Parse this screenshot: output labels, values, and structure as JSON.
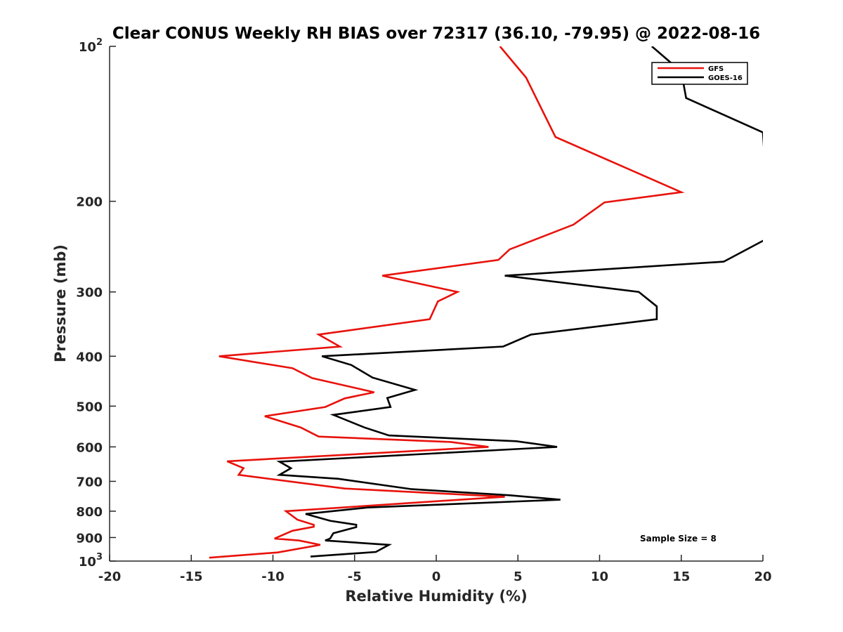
{
  "chart_data": {
    "type": "line",
    "title": "Clear CONUS Weekly RH BIAS over 72317 (36.10, -79.95) @ 2022-08-16",
    "xlabel": "Relative Humidity (%)",
    "ylabel": "Pressure (mb)",
    "xlim": [
      -20,
      20
    ],
    "ylim": [
      100,
      1000
    ],
    "yscale": "log",
    "y_reversed": true,
    "grid": false,
    "legend_position": "top-right",
    "x_ticks": [
      "-20",
      "-15",
      "-10",
      "-5",
      "0",
      "5",
      "10",
      "15",
      "20"
    ],
    "x_tick_values": [
      -20,
      -15,
      -10,
      -5,
      0,
      5,
      10,
      15,
      20
    ],
    "y_ticks": [
      {
        "value": 100,
        "base": "10",
        "exp": "2"
      },
      {
        "value": 200,
        "label": "200"
      },
      {
        "value": 300,
        "label": "300"
      },
      {
        "value": 400,
        "label": "400"
      },
      {
        "value": 500,
        "label": "500"
      },
      {
        "value": 600,
        "label": "600"
      },
      {
        "value": 700,
        "label": "700"
      },
      {
        "value": 800,
        "label": "800"
      },
      {
        "value": 900,
        "label": "900"
      },
      {
        "value": 1000,
        "base": "10",
        "exp": "3"
      }
    ],
    "annotation": "Sample Size = 8",
    "series": [
      {
        "name": "GFS",
        "color": "#e8120c",
        "points": [
          {
            "x": 3.9,
            "y": 100
          },
          {
            "x": 5.5,
            "y": 115
          },
          {
            "x": 7.3,
            "y": 150
          },
          {
            "x": 15.0,
            "y": 192
          },
          {
            "x": 10.3,
            "y": 201
          },
          {
            "x": 8.4,
            "y": 222
          },
          {
            "x": 4.5,
            "y": 248
          },
          {
            "x": 3.8,
            "y": 260
          },
          {
            "x": -3.3,
            "y": 279
          },
          {
            "x": 1.3,
            "y": 300
          },
          {
            "x": 0.1,
            "y": 313
          },
          {
            "x": -0.4,
            "y": 339
          },
          {
            "x": -7.2,
            "y": 363
          },
          {
            "x": -5.9,
            "y": 383
          },
          {
            "x": -13.3,
            "y": 400
          },
          {
            "x": -8.8,
            "y": 422
          },
          {
            "x": -7.6,
            "y": 441
          },
          {
            "x": -3.8,
            "y": 470
          },
          {
            "x": -5.6,
            "y": 483
          },
          {
            "x": -6.8,
            "y": 502
          },
          {
            "x": -10.5,
            "y": 523
          },
          {
            "x": -8.3,
            "y": 550
          },
          {
            "x": -7.2,
            "y": 573
          },
          {
            "x": 0.9,
            "y": 587
          },
          {
            "x": 3.2,
            "y": 600
          },
          {
            "x": -12.8,
            "y": 640
          },
          {
            "x": -11.8,
            "y": 660
          },
          {
            "x": -12.1,
            "y": 680
          },
          {
            "x": -5.6,
            "y": 723
          },
          {
            "x": 4.2,
            "y": 750
          },
          {
            "x": -9.2,
            "y": 800
          },
          {
            "x": -8.5,
            "y": 831
          },
          {
            "x": -7.5,
            "y": 850
          },
          {
            "x": -7.5,
            "y": 858
          },
          {
            "x": -8.8,
            "y": 873
          },
          {
            "x": -9.9,
            "y": 904
          },
          {
            "x": -8.4,
            "y": 912
          },
          {
            "x": -7.1,
            "y": 930
          },
          {
            "x": -9.7,
            "y": 962
          },
          {
            "x": -13.9,
            "y": 985
          }
        ]
      },
      {
        "name": "GOES-16",
        "color": "#000000",
        "points": [
          {
            "x": 13.2,
            "y": 100
          },
          {
            "x": 15.0,
            "y": 112
          },
          {
            "x": 15.3,
            "y": 126
          },
          {
            "x": 20.0,
            "y": 147
          },
          {
            "x": 20.4,
            "y": 235
          },
          {
            "x": 17.6,
            "y": 262
          },
          {
            "x": 4.2,
            "y": 279
          },
          {
            "x": 12.4,
            "y": 300
          },
          {
            "x": 13.5,
            "y": 320
          },
          {
            "x": 13.5,
            "y": 339
          },
          {
            "x": 5.8,
            "y": 363
          },
          {
            "x": 4.1,
            "y": 383
          },
          {
            "x": -7.0,
            "y": 400
          },
          {
            "x": -5.2,
            "y": 416
          },
          {
            "x": -3.9,
            "y": 440
          },
          {
            "x": -1.3,
            "y": 465
          },
          {
            "x": -3.0,
            "y": 482
          },
          {
            "x": -2.8,
            "y": 502
          },
          {
            "x": -6.3,
            "y": 520
          },
          {
            "x": -4.4,
            "y": 550
          },
          {
            "x": -2.9,
            "y": 570
          },
          {
            "x": 4.9,
            "y": 585
          },
          {
            "x": 7.4,
            "y": 600
          },
          {
            "x": -9.6,
            "y": 641
          },
          {
            "x": -8.9,
            "y": 660
          },
          {
            "x": -9.6,
            "y": 680
          },
          {
            "x": -6.0,
            "y": 692
          },
          {
            "x": -1.5,
            "y": 725
          },
          {
            "x": 4.5,
            "y": 745
          },
          {
            "x": 7.6,
            "y": 760
          },
          {
            "x": -4.2,
            "y": 787
          },
          {
            "x": -8.0,
            "y": 810
          },
          {
            "x": -6.5,
            "y": 835
          },
          {
            "x": -4.9,
            "y": 850
          },
          {
            "x": -4.9,
            "y": 859
          },
          {
            "x": -6.3,
            "y": 883
          },
          {
            "x": -6.5,
            "y": 904
          },
          {
            "x": -6.8,
            "y": 912
          },
          {
            "x": -2.9,
            "y": 930
          },
          {
            "x": -3.7,
            "y": 960
          },
          {
            "x": -7.7,
            "y": 980
          }
        ]
      }
    ]
  }
}
